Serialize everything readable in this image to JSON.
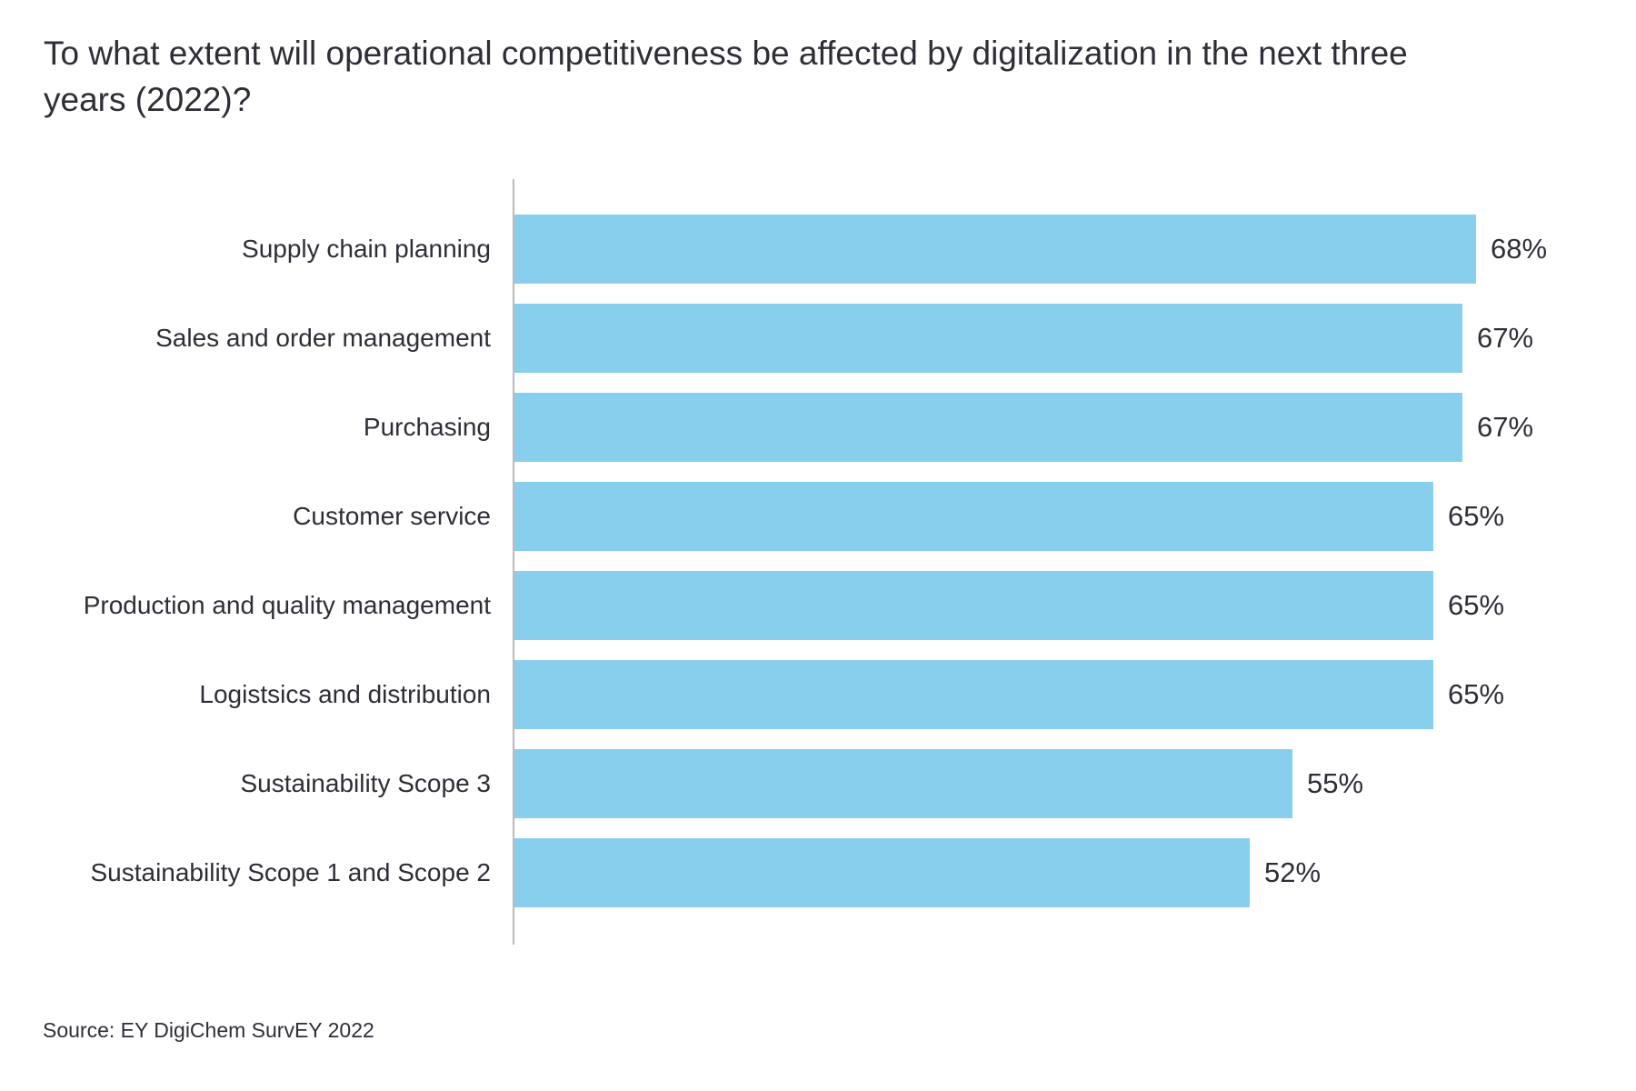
{
  "title": "To what extent will operational competitiveness be affected by digitalization in the next three years (2022)?",
  "source": "Source: EY DigiChem SurvEY 2022",
  "colors": {
    "bar": "#87CFED",
    "axis": "#b9b9c0",
    "text": "#2e2e38",
    "background": "#ffffff"
  },
  "chart_data": {
    "type": "bar",
    "orientation": "horizontal",
    "title": "To what extent will operational competitiveness be affected by digitalization in the next three years (2022)?",
    "categories": [
      "Supply chain planning",
      "Sales and order management",
      "Purchasing",
      "Customer service",
      "Production and quality management",
      "Logistsics and distribution",
      "Sustainability Scope 3",
      "Sustainability Scope 1 and Scope 2"
    ],
    "values": [
      68,
      67,
      67,
      65,
      65,
      65,
      55,
      52
    ],
    "value_labels": [
      "68%",
      "67%",
      "67%",
      "65%",
      "65%",
      "65%",
      "55%",
      "52%"
    ],
    "unit": "%",
    "xlim": [
      0,
      72
    ],
    "grid": false,
    "legend": false,
    "annotation": "Source: EY DigiChem SurvEY 2022"
  }
}
